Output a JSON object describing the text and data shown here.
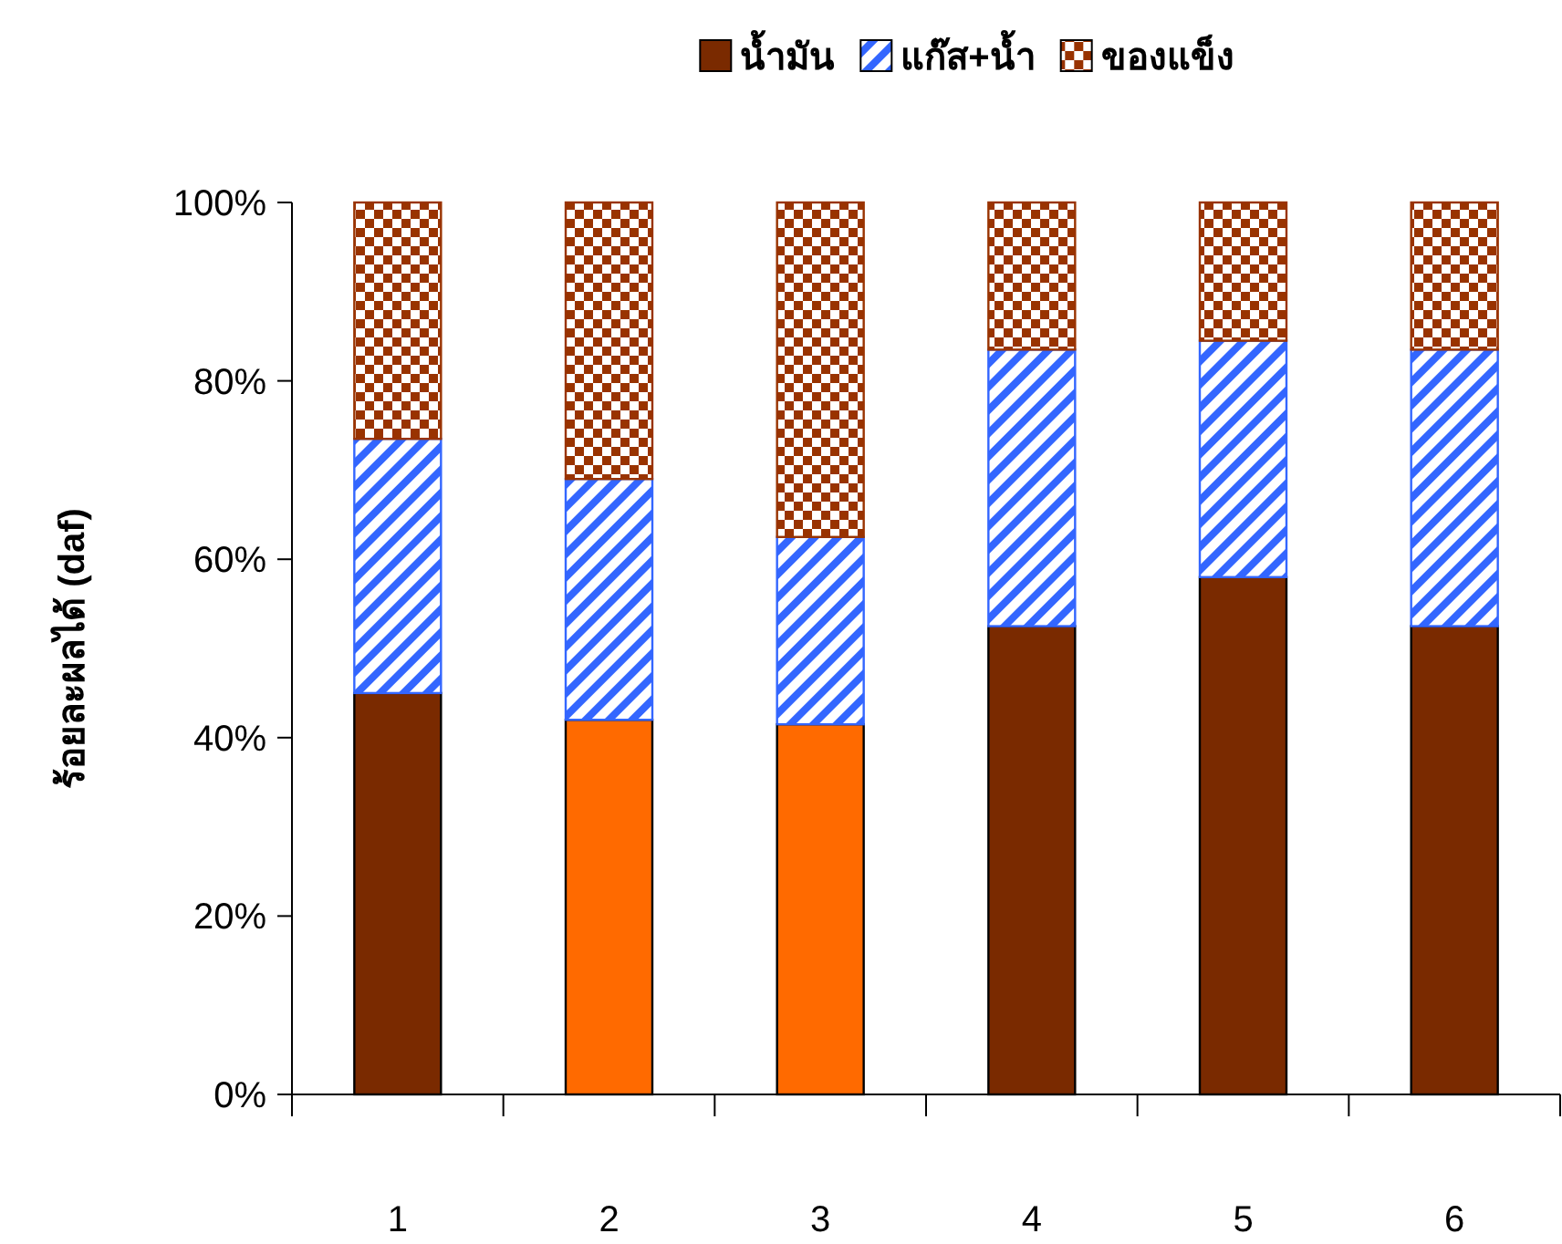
{
  "chart_data": {
    "type": "bar",
    "stacked": true,
    "ylabel": "ร้อยละผลได้ (daf)",
    "categories": [
      "1",
      "2",
      "3",
      "4",
      "5",
      "6"
    ],
    "series": [
      {
        "name": "น้ำมัน",
        "color": "#7a2a00",
        "colors": [
          "#7a2a00",
          "#ff6a00",
          "#ff6a00",
          "#7a2a00",
          "#7a2a00",
          "#7a2a00"
        ],
        "values": [
          45,
          42,
          41.5,
          52.5,
          58,
          52.5
        ]
      },
      {
        "name": "แก๊ส+น้ำ",
        "color": "#3366ff",
        "values": [
          28.5,
          27,
          21,
          31,
          26.5,
          31
        ]
      },
      {
        "name": "ของแข็ง",
        "color": "#993300",
        "values": [
          26.5,
          31,
          37.5,
          16.5,
          15.5,
          16.5
        ]
      }
    ],
    "ylim": [
      0,
      100
    ],
    "yticks": [
      {
        "value": 0,
        "label": "0%"
      },
      {
        "value": 20,
        "label": "20%"
      },
      {
        "value": 40,
        "label": "40%"
      },
      {
        "value": 60,
        "label": "60%"
      },
      {
        "value": 80,
        "label": "80%"
      },
      {
        "value": 100,
        "label": "100%"
      }
    ],
    "legend": "top"
  }
}
